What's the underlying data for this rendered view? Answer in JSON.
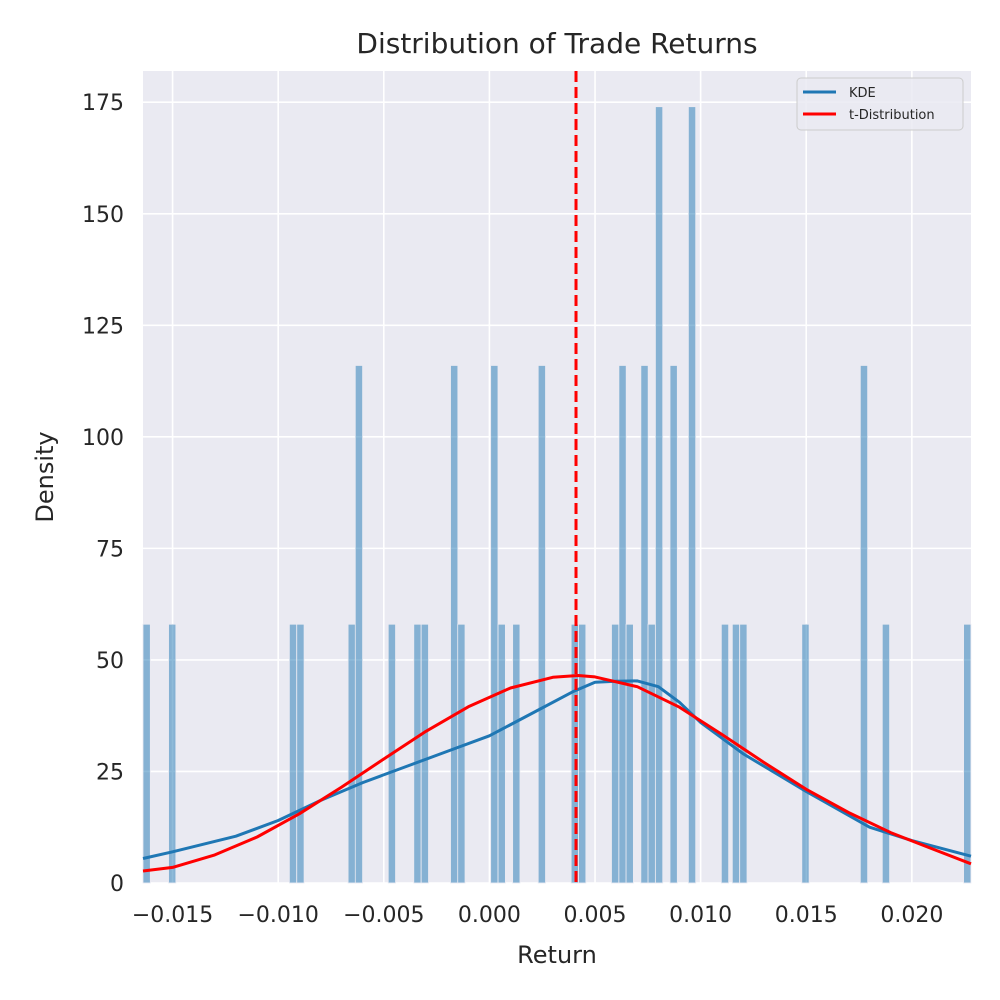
{
  "chart_data": {
    "type": "bar",
    "title": "Distribution of Trade Returns",
    "xlabel": "Return",
    "ylabel": "Density",
    "xlim": [
      -0.0164,
      0.0228
    ],
    "ylim": [
      0,
      182
    ],
    "x_ticks": [
      {
        "value": -0.015,
        "label": "−0.015"
      },
      {
        "value": -0.01,
        "label": "−0.010"
      },
      {
        "value": -0.005,
        "label": "−0.005"
      },
      {
        "value": 0.0,
        "label": "0.000"
      },
      {
        "value": 0.005,
        "label": "0.005"
      },
      {
        "value": 0.01,
        "label": "0.010"
      },
      {
        "value": 0.015,
        "label": "0.015"
      },
      {
        "value": 0.02,
        "label": "0.020"
      }
    ],
    "y_ticks": [
      {
        "value": 0,
        "label": "0"
      },
      {
        "value": 25,
        "label": "25"
      },
      {
        "value": 50,
        "label": "50"
      },
      {
        "value": 75,
        "label": "75"
      },
      {
        "value": 100,
        "label": "100"
      },
      {
        "value": 125,
        "label": "125"
      },
      {
        "value": 150,
        "label": "150"
      },
      {
        "value": 175,
        "label": "175"
      }
    ],
    "grid": true,
    "legend_position": "top-right",
    "histogram": {
      "bin_width": 0.000346,
      "bin_starts": [
        -0.0164,
        -0.01519,
        -0.00947,
        -0.00912,
        -0.00669,
        -0.00635,
        -0.00479,
        -0.00358,
        -0.00323,
        -0.00184,
        -0.0015,
        6e-05,
        0.00041,
        0.0011,
        0.00231,
        0.00387,
        0.00422,
        0.00578,
        0.00613,
        0.00647,
        0.00717,
        0.00751,
        0.00786,
        0.00855,
        0.00942,
        0.01098,
        0.0115,
        0.01185,
        0.01479,
        0.01756,
        0.0186,
        0.02245
      ],
      "densities": [
        58,
        58,
        58,
        58,
        58,
        116,
        58,
        58,
        58,
        116,
        58,
        116,
        58,
        58,
        116,
        58,
        58,
        58,
        116,
        58,
        116,
        58,
        174,
        116,
        174,
        58,
        58,
        58,
        58,
        116,
        58,
        58
      ],
      "color": "#1f77b4"
    },
    "series": [
      {
        "name": "KDE",
        "color": "#1f77b4",
        "x": [
          -0.0164,
          -0.015,
          -0.012,
          -0.01,
          -0.008,
          -0.006,
          -0.004,
          -0.002,
          0.0,
          0.002,
          0.004,
          0.005,
          0.006,
          0.007,
          0.008,
          0.009,
          0.01,
          0.012,
          0.015,
          0.018,
          0.02,
          0.0228
        ],
        "y": [
          5.5,
          7,
          10.5,
          14,
          18.5,
          22.5,
          26,
          29.5,
          33,
          38,
          43,
          45,
          45.2,
          45.3,
          44,
          40.5,
          36,
          29,
          20.5,
          12.5,
          9.5,
          6
        ]
      },
      {
        "name": "t-Distribution",
        "color": "#ff0000",
        "x": [
          -0.0164,
          -0.015,
          -0.013,
          -0.011,
          -0.009,
          -0.007,
          -0.005,
          -0.003,
          -0.001,
          0.001,
          0.003,
          0.0042,
          0.005,
          0.007,
          0.009,
          0.011,
          0.013,
          0.015,
          0.017,
          0.019,
          0.021,
          0.0228
        ],
        "y": [
          2.7,
          3.5,
          6.3,
          10.3,
          15.5,
          21.5,
          27.8,
          34,
          39.5,
          43.7,
          46.1,
          46.5,
          46.2,
          44,
          39.4,
          33.3,
          27,
          21,
          15.8,
          11.3,
          7.6,
          4.3
        ]
      }
    ],
    "reference_line": {
      "x": 0.0041,
      "color": "#ff0000",
      "style": "dashed"
    }
  }
}
